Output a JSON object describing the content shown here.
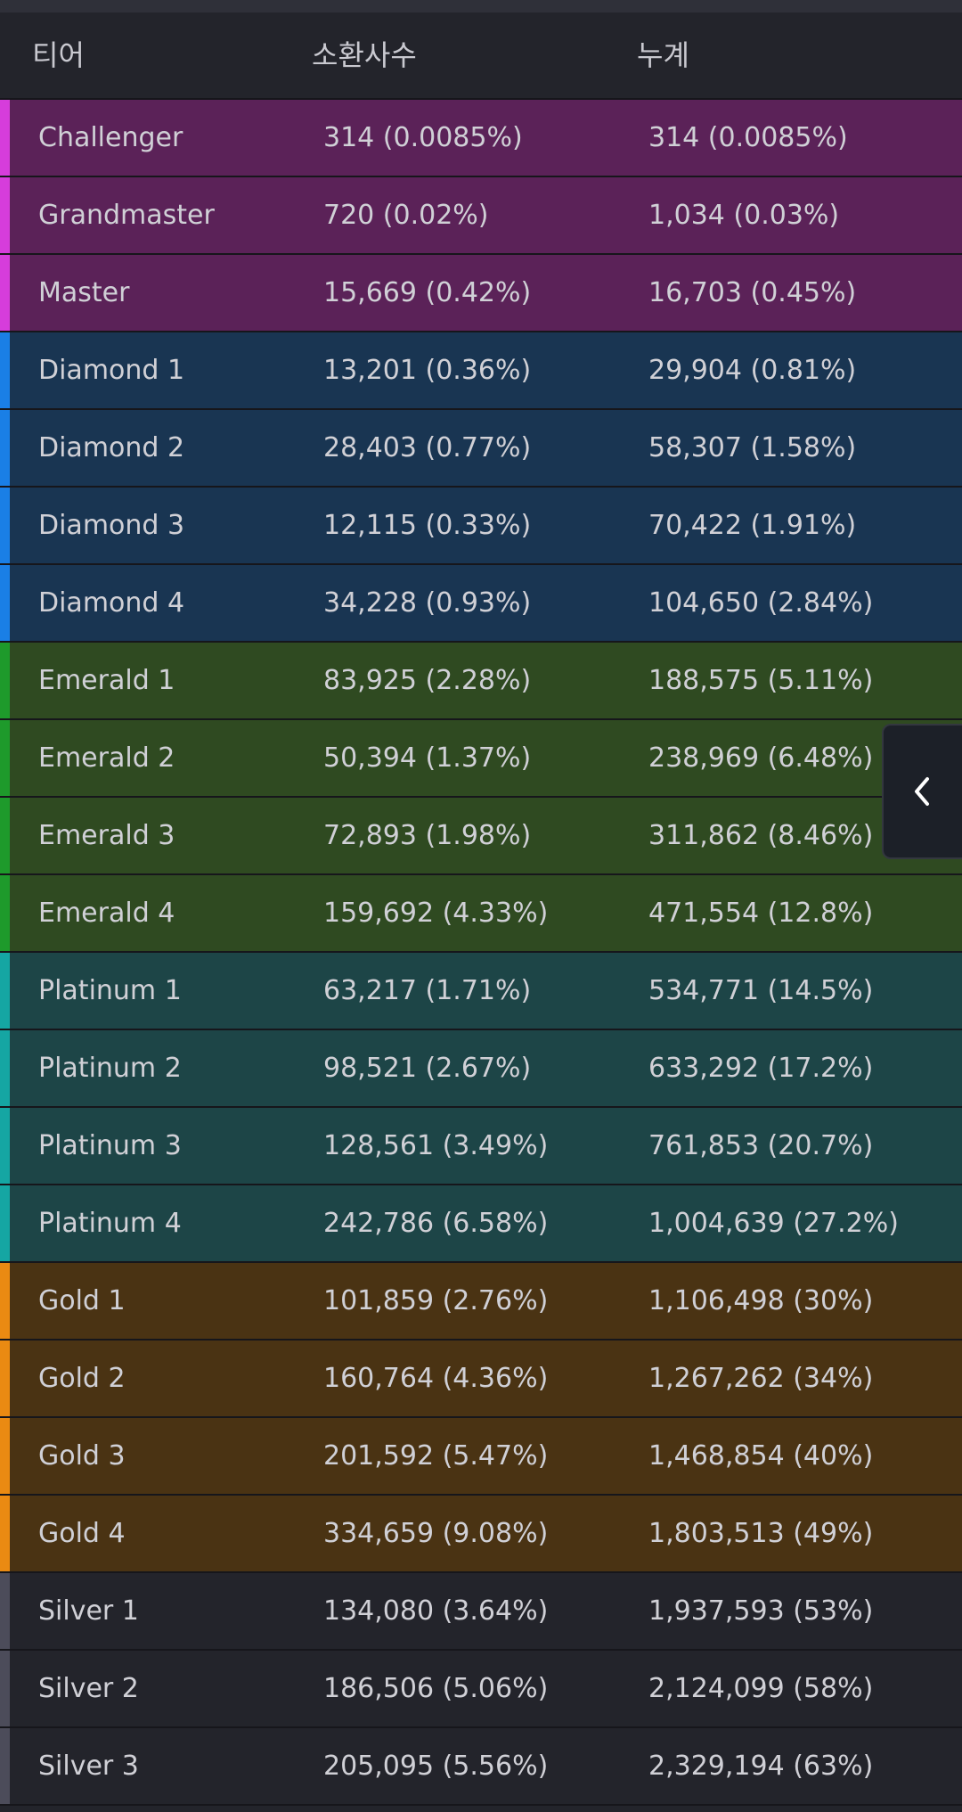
{
  "header": {
    "tier": "티어",
    "summoners": "소환사수",
    "cumulative": "누계"
  },
  "tier_colors": {
    "master": {
      "bg": "#5b2258",
      "accent": "#d63ddb"
    },
    "diamond": {
      "bg": "#193552",
      "accent": "#1a7fe6"
    },
    "emerald": {
      "bg": "#2f4a21",
      "accent": "#1e9a2b"
    },
    "platinum": {
      "bg": "#1d4547",
      "accent": "#15a6a3"
    },
    "gold": {
      "bg": "#4a3313",
      "accent": "#ea8a12"
    },
    "silver": {
      "bg": "#23242b",
      "accent": "#4c4c5a"
    }
  },
  "rows": [
    {
      "tier": "Challenger",
      "count": "314 (0.0085%)",
      "cumulative": "314 (0.0085%)",
      "group": "master"
    },
    {
      "tier": "Grandmaster",
      "count": "720 (0.02%)",
      "cumulative": "1,034 (0.03%)",
      "group": "master"
    },
    {
      "tier": "Master",
      "count": "15,669 (0.42%)",
      "cumulative": "16,703 (0.45%)",
      "group": "master"
    },
    {
      "tier": "Diamond 1",
      "count": "13,201 (0.36%)",
      "cumulative": "29,904 (0.81%)",
      "group": "diamond"
    },
    {
      "tier": "Diamond 2",
      "count": "28,403 (0.77%)",
      "cumulative": "58,307 (1.58%)",
      "group": "diamond"
    },
    {
      "tier": "Diamond 3",
      "count": "12,115 (0.33%)",
      "cumulative": "70,422 (1.91%)",
      "group": "diamond"
    },
    {
      "tier": "Diamond 4",
      "count": "34,228 (0.93%)",
      "cumulative": "104,650 (2.84%)",
      "group": "diamond"
    },
    {
      "tier": "Emerald 1",
      "count": "83,925 (2.28%)",
      "cumulative": "188,575 (5.11%)",
      "group": "emerald"
    },
    {
      "tier": "Emerald 2",
      "count": "50,394 (1.37%)",
      "cumulative": "238,969 (6.48%)",
      "group": "emerald"
    },
    {
      "tier": "Emerald 3",
      "count": "72,893 (1.98%)",
      "cumulative": "311,862 (8.46%)",
      "group": "emerald"
    },
    {
      "tier": "Emerald 4",
      "count": "159,692 (4.33%)",
      "cumulative": "471,554 (12.8%)",
      "group": "emerald"
    },
    {
      "tier": "Platinum 1",
      "count": "63,217 (1.71%)",
      "cumulative": "534,771 (14.5%)",
      "group": "platinum"
    },
    {
      "tier": "Platinum 2",
      "count": "98,521 (2.67%)",
      "cumulative": "633,292 (17.2%)",
      "group": "platinum"
    },
    {
      "tier": "Platinum 3",
      "count": "128,561 (3.49%)",
      "cumulative": "761,853 (20.7%)",
      "group": "platinum"
    },
    {
      "tier": "Platinum 4",
      "count": "242,786 (6.58%)",
      "cumulative": "1,004,639 (27.2%)",
      "group": "platinum"
    },
    {
      "tier": "Gold 1",
      "count": "101,859 (2.76%)",
      "cumulative": "1,106,498 (30%)",
      "group": "gold"
    },
    {
      "tier": "Gold 2",
      "count": "160,764 (4.36%)",
      "cumulative": "1,267,262 (34%)",
      "group": "gold"
    },
    {
      "tier": "Gold 3",
      "count": "201,592 (5.47%)",
      "cumulative": "1,468,854 (40%)",
      "group": "gold"
    },
    {
      "tier": "Gold 4",
      "count": "334,659 (9.08%)",
      "cumulative": "1,803,513 (49%)",
      "group": "gold"
    },
    {
      "tier": "Silver 1",
      "count": "134,080 (3.64%)",
      "cumulative": "1,937,593 (53%)",
      "group": "silver"
    },
    {
      "tier": "Silver 2",
      "count": "186,506 (5.06%)",
      "cumulative": "2,124,099 (58%)",
      "group": "silver"
    },
    {
      "tier": "Silver 3",
      "count": "205,095 (5.56%)",
      "cumulative": "2,329,194 (63%)",
      "group": "silver"
    }
  ],
  "collapse_tab": {
    "icon": "chevron-left-icon"
  }
}
